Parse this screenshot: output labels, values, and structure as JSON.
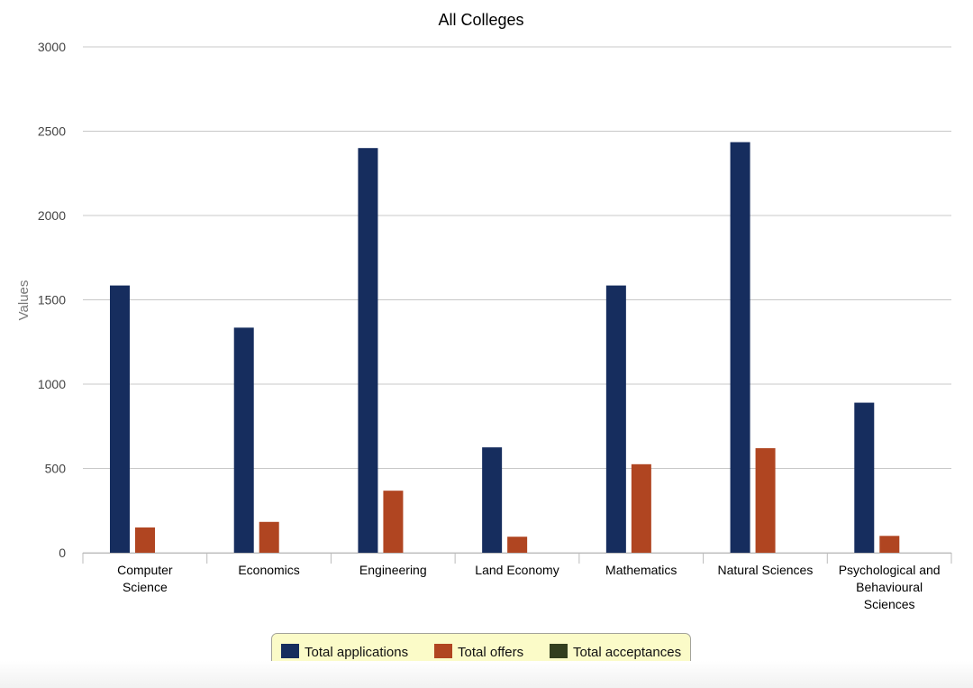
{
  "chart_data": {
    "type": "bar",
    "title": "All Colleges",
    "ylabel": "Values",
    "xlabel": "",
    "ylim": [
      0,
      3000
    ],
    "yticks": [
      0,
      500,
      1000,
      1500,
      2000,
      2500,
      3000
    ],
    "grid": true,
    "legend_position": "bottom-center",
    "categories": [
      [
        "Computer",
        "Science"
      ],
      [
        "Economics"
      ],
      [
        "Engineering"
      ],
      [
        "Land Economy"
      ],
      [
        "Mathematics"
      ],
      [
        "Natural Sciences"
      ],
      [
        "Psychological and",
        "Behavioural",
        "Sciences"
      ]
    ],
    "series": [
      {
        "name": "Total applications",
        "color": "#162d5e",
        "values": [
          1585,
          1335,
          2400,
          625,
          1585,
          2435,
          890
        ]
      },
      {
        "name": "Total offers",
        "color": "#b04521",
        "values": [
          150,
          183,
          368,
          95,
          525,
          620,
          100
        ]
      },
      {
        "name": "Total acceptances",
        "color": "#333f1f",
        "values": [
          0,
          0,
          0,
          0,
          0,
          0,
          0
        ]
      }
    ],
    "colors": {
      "grid": "#c8c8c8",
      "axis": "#bbbbbb",
      "legend_bg": "#fbfbc8",
      "legend_border": "#a3a39a"
    }
  }
}
